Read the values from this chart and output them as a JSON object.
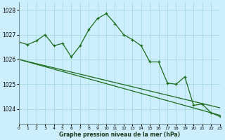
{
  "title": "Graphe pression niveau de la mer (hPa)",
  "bg_color": "#cceeff",
  "grid_color": "#aadddd",
  "line_color": "#1a6b1a",
  "x_min": 0,
  "x_max": 23,
  "y_min": 1023.4,
  "y_max": 1028.3,
  "y_ticks": [
    1024,
    1025,
    1026,
    1027,
    1028
  ],
  "x_ticks": [
    0,
    1,
    2,
    3,
    4,
    5,
    6,
    7,
    8,
    9,
    10,
    11,
    12,
    13,
    14,
    15,
    16,
    17,
    18,
    19,
    20,
    21,
    22,
    23
  ],
  "series1_x": [
    0,
    1,
    2,
    3,
    4,
    5,
    6,
    7,
    8,
    9,
    10,
    11,
    12,
    13,
    14,
    15,
    16,
    17,
    18,
    19,
    20,
    21,
    22,
    23
  ],
  "series1_y": [
    1026.7,
    1026.6,
    1026.75,
    1027.0,
    1026.55,
    1026.65,
    1026.1,
    1026.55,
    1027.2,
    1027.65,
    1027.85,
    1027.45,
    1027.0,
    1026.8,
    1026.55,
    1025.9,
    1025.9,
    1025.05,
    1025.0,
    1025.3,
    1024.15,
    1024.2,
    1023.85,
    1023.7
  ],
  "series2_x": [
    0,
    23
  ],
  "series2_y": [
    1026.0,
    1024.05
  ],
  "series3_x": [
    0,
    23
  ],
  "series3_y": [
    1026.0,
    1023.75
  ]
}
